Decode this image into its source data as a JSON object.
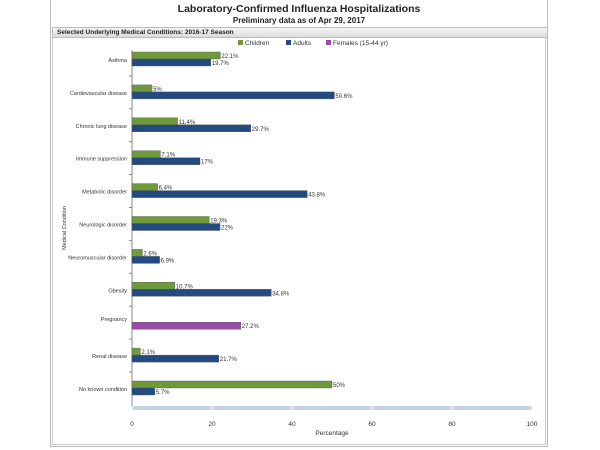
{
  "title": "Laboratory-Confirmed Influenza Hospitalizations",
  "subtitle": "Preliminary data as of Apr 29, 2017",
  "panel_title": "Selected Underlying Medical Conditions: 2016-17 Season",
  "chart_data": {
    "type": "bar",
    "orientation": "horizontal",
    "categories": [
      "Asthma",
      "Cardiovascular disease",
      "Chronic lung disease",
      "Immune suppression",
      "Metabolic disorder",
      "Neurologic disorder",
      "Neuromuscular disorder",
      "Obesity",
      "Pregnancy",
      "Renal disease",
      "No known condition"
    ],
    "series": [
      {
        "name": "Children",
        "color": "#6e9a3a",
        "values": [
          22.1,
          5,
          11.4,
          7.1,
          6.4,
          19.3,
          2.6,
          10.7,
          null,
          2.1,
          50
        ],
        "labels": [
          "22.1%",
          "5%",
          "11.4%",
          "7.1%",
          "6.4%",
          "19.3%",
          "2.6%",
          "10.7%",
          null,
          "2.1%",
          "50%"
        ]
      },
      {
        "name": "Adults",
        "color": "#244a82",
        "values": [
          19.7,
          50.6,
          29.7,
          17,
          43.8,
          22,
          6.9,
          34.8,
          null,
          21.7,
          5.7
        ],
        "labels": [
          "19.7%",
          "50.6%",
          "29.7%",
          "17%",
          "43.8%",
          "22%",
          "6.9%",
          "34.8%",
          null,
          "21.7%",
          "5.7%"
        ]
      },
      {
        "name": "Females (15-44 yr)",
        "color": "#9b4aa8",
        "values": [
          null,
          null,
          null,
          null,
          null,
          null,
          null,
          null,
          27.2,
          null,
          null
        ],
        "labels": [
          null,
          null,
          null,
          null,
          null,
          null,
          null,
          null,
          "27.2%",
          null,
          null
        ]
      }
    ],
    "xlabel": "Percentage",
    "ylabel": "Medical Condition",
    "xlim": [
      0,
      100
    ],
    "xticks": [
      "0",
      "20",
      "40",
      "60",
      "80",
      "100"
    ],
    "legend": "top",
    "grid": false
  }
}
